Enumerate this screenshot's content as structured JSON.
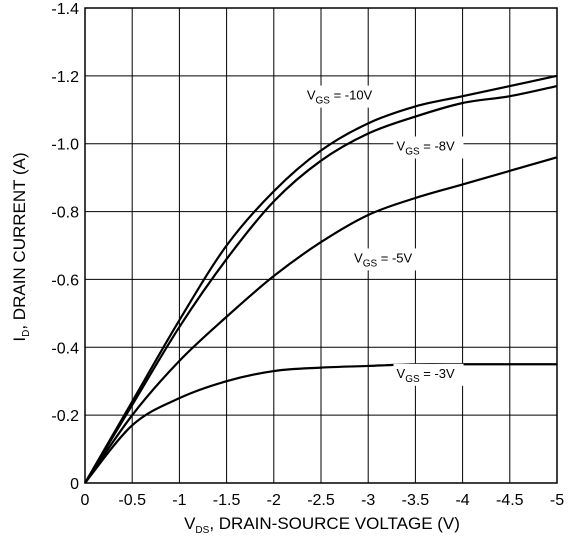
{
  "chart_data": {
    "type": "line",
    "xlabel": {
      "main": "V",
      "sub": "DS",
      "rest": ", DRAIN-SOURCE VOLTAGE (V)"
    },
    "ylabel": {
      "main": "I",
      "sub": "D",
      "rest": ", DRAIN CURRENT (A)"
    },
    "xlim": [
      0,
      -5
    ],
    "ylim": [
      0,
      -1.4
    ],
    "x_ticks": [
      0,
      -0.5,
      -1,
      -1.5,
      -2,
      -2.5,
      -3,
      -3.5,
      -4,
      -4.5,
      -5
    ],
    "x_tick_labels": [
      "0",
      "-0.5",
      "-1",
      "-1.5",
      "-2",
      "-2.5",
      "-3",
      "-3.5",
      "-4",
      "-4.5",
      "-5"
    ],
    "y_ticks": [
      0,
      -0.2,
      -0.4,
      -0.6,
      -0.8,
      -1.0,
      -1.2,
      -1.4
    ],
    "y_tick_labels": [
      "0",
      "-0.2",
      "-0.4",
      "-0.6",
      "-0.8",
      "-1.0",
      "-1.2",
      "-1.4"
    ],
    "grid": true,
    "series": [
      {
        "name": "-10V",
        "label": {
          "main": "V",
          "sub": "GS",
          "rest": " = -10V"
        },
        "x": [
          0,
          -0.5,
          -1,
          -1.5,
          -2,
          -2.5,
          -3,
          -3.5,
          -4,
          -4.5,
          -5
        ],
        "y": [
          0,
          -0.24,
          -0.48,
          -0.7,
          -0.86,
          -0.98,
          -1.06,
          -1.11,
          -1.14,
          -1.17,
          -1.2
        ]
      },
      {
        "name": "-8V",
        "label": {
          "main": "V",
          "sub": "GS",
          "rest": " = -8V"
        },
        "x": [
          0,
          -0.5,
          -1,
          -1.5,
          -2,
          -2.5,
          -3,
          -3.5,
          -4,
          -4.5,
          -5
        ],
        "y": [
          0,
          -0.23,
          -0.46,
          -0.66,
          -0.83,
          -0.95,
          -1.03,
          -1.08,
          -1.12,
          -1.14,
          -1.17
        ]
      },
      {
        "name": "-5V",
        "label": {
          "main": "V",
          "sub": "GS",
          "rest": " = -5V"
        },
        "x": [
          0,
          -0.5,
          -1,
          -1.5,
          -2,
          -2.5,
          -3,
          -3.5,
          -4,
          -4.5,
          -5
        ],
        "y": [
          0,
          -0.2,
          -0.36,
          -0.49,
          -0.61,
          -0.71,
          -0.79,
          -0.84,
          -0.88,
          -0.92,
          -0.96
        ]
      },
      {
        "name": "-3V",
        "label": {
          "main": "V",
          "sub": "GS",
          "rest": " = -3V"
        },
        "x": [
          0,
          -0.5,
          -1,
          -1.5,
          -2,
          -2.5,
          -3,
          -3.5,
          -4,
          -4.5,
          -5
        ],
        "y": [
          0,
          -0.17,
          -0.25,
          -0.3,
          -0.33,
          -0.34,
          -0.345,
          -0.35,
          -0.35,
          -0.35,
          -0.35
        ]
      }
    ],
    "annotations": [
      {
        "series": "-10V",
        "x": -2.35,
        "y": -1.13
      },
      {
        "series": "-8V",
        "x": -3.3,
        "y": -0.98
      },
      {
        "series": "-5V",
        "x": -2.85,
        "y": -0.65
      },
      {
        "series": "-3V",
        "x": -3.3,
        "y": -0.31
      }
    ]
  }
}
